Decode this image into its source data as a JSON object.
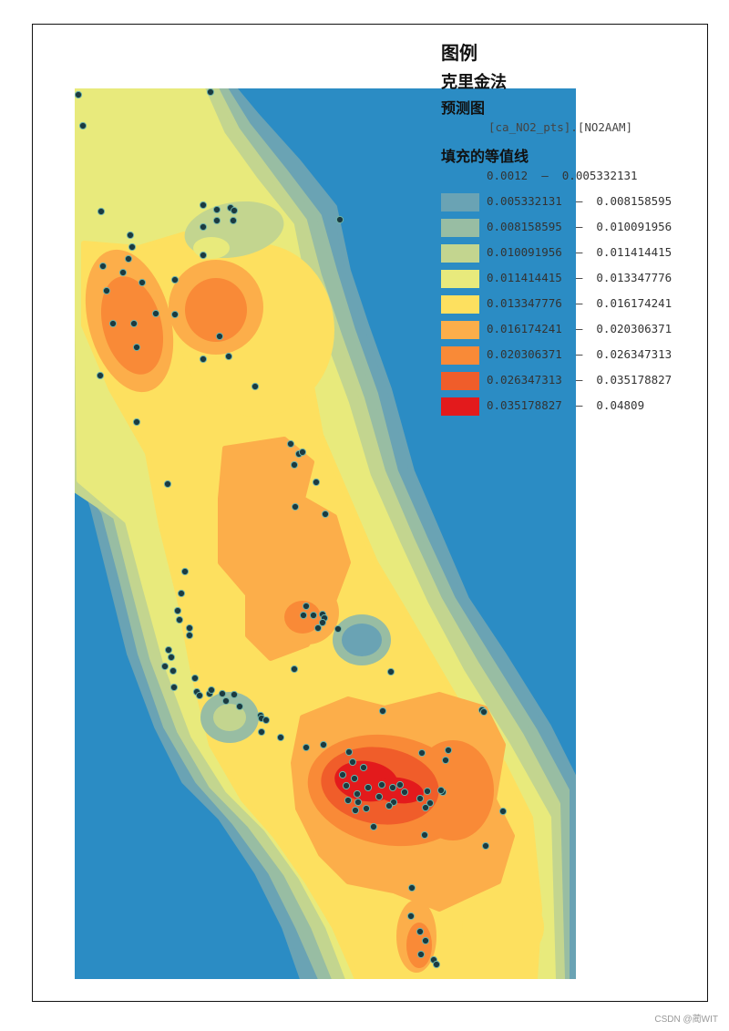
{
  "legend": {
    "title": "图例",
    "method": "克里金法",
    "layer": "预测图",
    "field": "[ca_NO2_pts].[NO2AAM]",
    "fill_heading": "填充的等值线",
    "classes": [
      {
        "label": "0.0012  –  0.005332131",
        "color": "#2b8cc4"
      },
      {
        "label": "0.005332131  –  0.008158595",
        "color": "#6aa3b4"
      },
      {
        "label": "0.008158595  –  0.010091956",
        "color": "#98bda3"
      },
      {
        "label": "0.010091956  –  0.011414415",
        "color": "#c3d58f"
      },
      {
        "label": "0.011414415  –  0.013347776",
        "color": "#e8ea7c"
      },
      {
        "label": "0.013347776  –  0.016174241",
        "color": "#fde05f"
      },
      {
        "label": "0.016174241  –  0.020306371",
        "color": "#fcae4a"
      },
      {
        "label": "0.020306371  –  0.026347313",
        "color": "#f98a37"
      },
      {
        "label": "0.026347313  –  0.035178827",
        "color": "#f05d2a"
      },
      {
        "label": "0.035178827  –  0.04809",
        "color": "#e31a1c"
      }
    ]
  },
  "map": {
    "background_color": "#2b8cc4",
    "point_color": "#1b3a40",
    "point_count": 110
  },
  "watermark": "CSDN @蔺WIT"
}
